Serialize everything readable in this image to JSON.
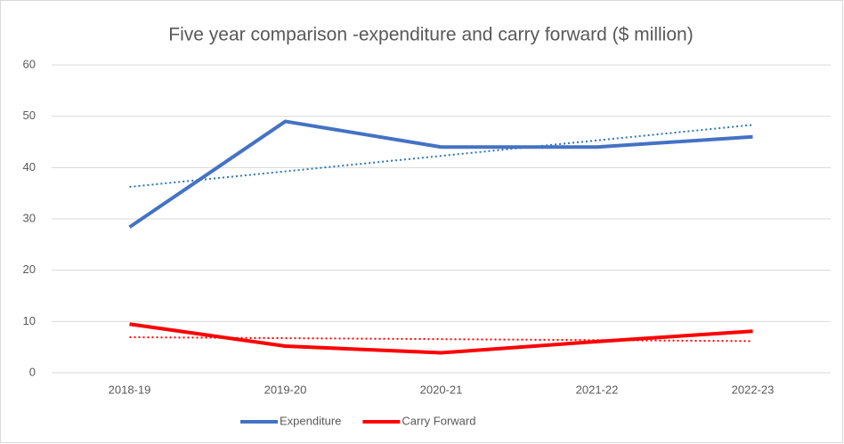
{
  "chart_data": {
    "type": "line",
    "title": "Five year comparison -expenditure and carry forward ($ million)",
    "categories": [
      "2018-19",
      "2019-20",
      "2020-21",
      "2021-22",
      "2022-23"
    ],
    "series": [
      {
        "name": "Expenditure",
        "color": "#4472c4",
        "trendline_color": "#2e75b6",
        "trendline": true,
        "values": [
          28.4,
          49.0,
          44.0,
          44.0,
          46.0
        ]
      },
      {
        "name": "Carry Forward",
        "color": "#ff0000",
        "trendline_color": "#ff0000",
        "trendline": true,
        "values": [
          9.5,
          5.2,
          3.9,
          6.1,
          8.1
        ]
      }
    ],
    "ylim": [
      0,
      60
    ],
    "yticks": [
      0,
      10,
      20,
      30,
      40,
      50,
      60
    ],
    "grid": true,
    "legend": "bottom"
  }
}
